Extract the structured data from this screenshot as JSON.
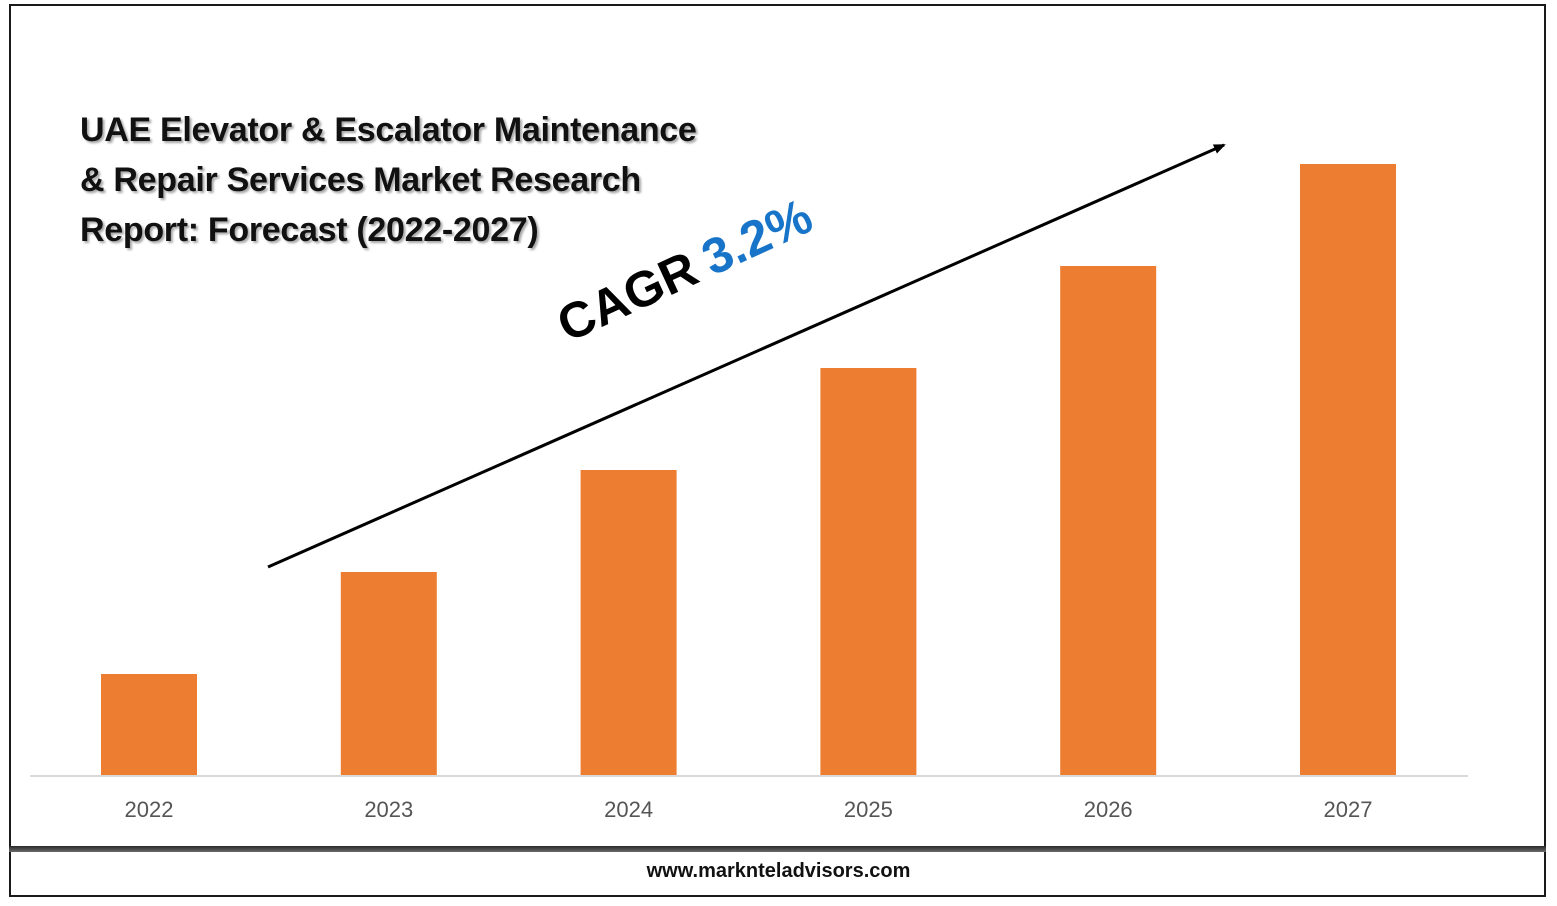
{
  "colors": {
    "bar": "#ED7D31",
    "cagr_value": "#1874C8",
    "axis": "#D9D9D9",
    "arrow": "#000000"
  },
  "title_lines": [
    "UAE Elevator & Escalator Maintenance",
    "& Repair Services Market Research",
    "Report: Forecast (2022-2027)"
  ],
  "cagr": {
    "label": "CAGR",
    "value": "3.2%"
  },
  "footer": {
    "url": "www.marknteladvisors.com"
  },
  "chart_data": {
    "type": "bar",
    "title": "UAE Elevator & Escalator Maintenance & Repair Services Market Research Report: Forecast (2022-2027)",
    "categories": [
      "2022",
      "2023",
      "2024",
      "2025",
      "2026",
      "2027"
    ],
    "values": [
      1,
      2,
      3,
      4,
      5,
      6
    ],
    "xlabel": "",
    "ylabel": "",
    "ylim": [
      0,
      6
    ],
    "y_axis_visible": false,
    "grid": false,
    "legend": "none",
    "annotation": "CAGR 3.2%"
  }
}
